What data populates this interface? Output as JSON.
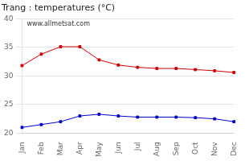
{
  "chart_data": {
    "type": "line",
    "title": "Trang : temperatures (°C)",
    "categories": [
      "Jan",
      "Feb",
      "Mar",
      "Apr",
      "May",
      "Jun",
      "Jul",
      "Aug",
      "Sep",
      "Oct",
      "Nov",
      "Dec"
    ],
    "series": [
      {
        "color": "#cc0000",
        "marker": "square",
        "values": [
          31.8,
          33.8,
          35.1,
          35.1,
          32.8,
          31.9,
          31.5,
          31.3,
          31.3,
          31.1,
          30.9,
          30.6
        ]
      },
      {
        "color": "#0000cc",
        "marker": "square",
        "values": [
          21.0,
          21.5,
          22.0,
          23.0,
          23.3,
          23.0,
          22.8,
          22.8,
          22.8,
          22.7,
          22.5,
          22.0
        ]
      }
    ],
    "ylim": [
      20,
      40
    ],
    "yticks": [
      20,
      25,
      30,
      35,
      40
    ],
    "grid": true,
    "annotations": [
      "www.allmetsat.com"
    ]
  }
}
